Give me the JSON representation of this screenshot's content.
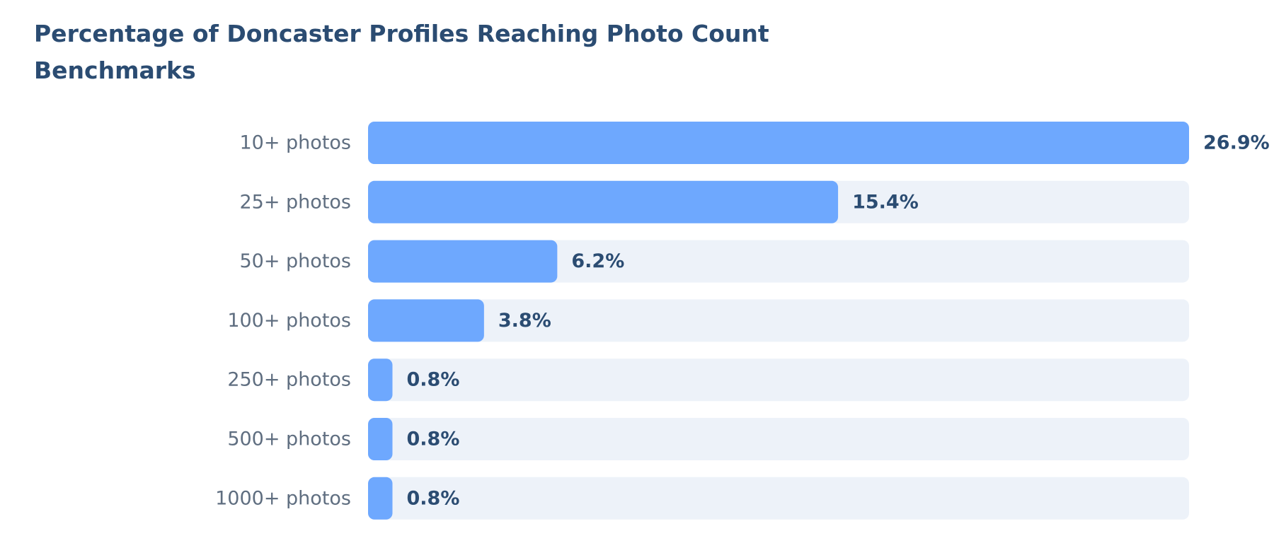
{
  "chart_data": {
    "type": "bar",
    "orientation": "horizontal",
    "title": [
      "Percentage of Doncaster Profiles Reaching Photo Count",
      "Benchmarks"
    ],
    "categories": [
      "10+ photos",
      "25+ photos",
      "50+ photos",
      "100+ photos",
      "250+ photos",
      "500+ photos",
      "1000+ photos"
    ],
    "values": [
      26.9,
      15.4,
      6.2,
      3.8,
      0.8,
      0.8,
      0.8
    ],
    "value_labels": [
      "26.9%",
      "15.4%",
      "6.2%",
      "3.8%",
      "0.8%",
      "0.8%",
      "0.8%"
    ],
    "color": "#6ea8fe",
    "track_color": "#edf2f9",
    "xlim": [
      0,
      26.9
    ]
  }
}
